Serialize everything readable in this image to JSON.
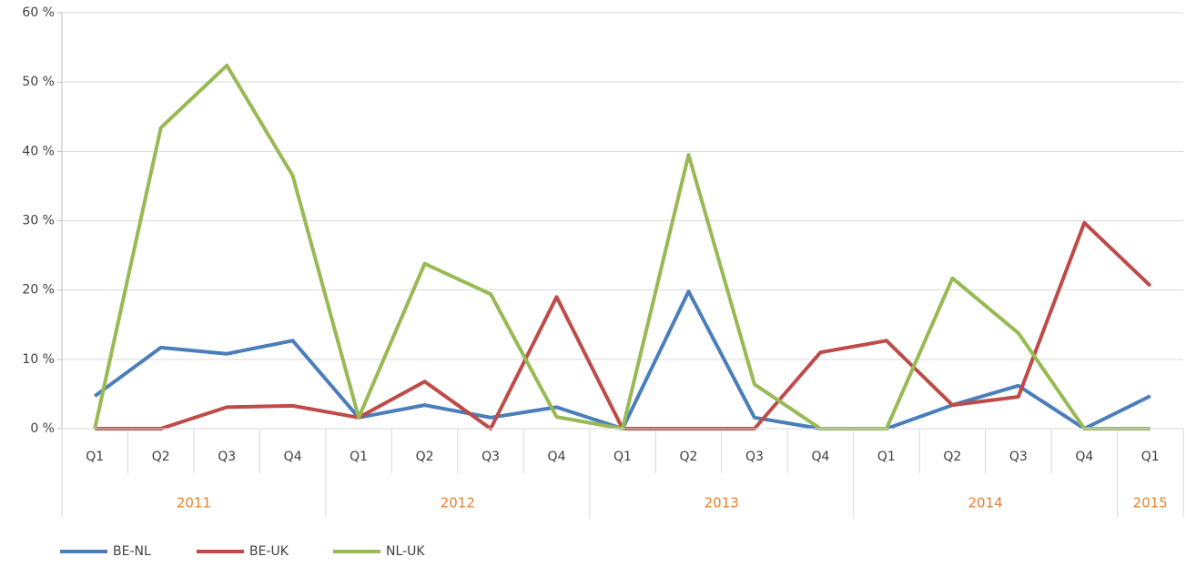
{
  "chart_data": {
    "type": "line",
    "groups": [
      {
        "label": "2011",
        "categories": [
          "Q1",
          "Q2",
          "Q3",
          "Q4"
        ]
      },
      {
        "label": "2012",
        "categories": [
          "Q1",
          "Q2",
          "Q3",
          "Q4"
        ]
      },
      {
        "label": "2013",
        "categories": [
          "Q1",
          "Q2",
          "Q3",
          "Q4"
        ]
      },
      {
        "label": "2014",
        "categories": [
          "Q1",
          "Q2",
          "Q3",
          "Q4"
        ]
      },
      {
        "label": "2015",
        "categories": [
          "Q1"
        ]
      }
    ],
    "series": [
      {
        "name": "BE-NL",
        "color": "#4a7ebb",
        "values": [
          4.7,
          11.7,
          10.8,
          12.7,
          1.6,
          3.4,
          1.6,
          3.1,
          0,
          19.8,
          1.6,
          0,
          0,
          3.4,
          6.2,
          0,
          4.7
        ]
      },
      {
        "name": "BE-UK",
        "color": "#be4b48",
        "values": [
          0,
          0,
          3.1,
          3.3,
          1.6,
          6.8,
          0,
          19.0,
          0,
          0,
          0,
          11.0,
          12.7,
          3.4,
          4.6,
          29.7,
          20.6
        ]
      },
      {
        "name": "NL-UK",
        "color": "#98b954",
        "values": [
          0,
          43.4,
          52.4,
          36.5,
          1.6,
          23.8,
          19.4,
          1.7,
          0,
          39.5,
          6.4,
          0,
          0,
          21.7,
          13.8,
          0,
          0
        ]
      }
    ],
    "ylim": [
      0,
      60
    ],
    "yticks": [
      {
        "value": 0,
        "label": "0 %"
      },
      {
        "value": 10,
        "label": "10 %"
      },
      {
        "value": 20,
        "label": "20 %"
      },
      {
        "value": 30,
        "label": "30 %"
      },
      {
        "value": 40,
        "label": "40 %"
      },
      {
        "value": 50,
        "label": "50 %"
      },
      {
        "value": 60,
        "label": "60 %"
      }
    ],
    "grid": true,
    "legend": "bottom-left"
  }
}
